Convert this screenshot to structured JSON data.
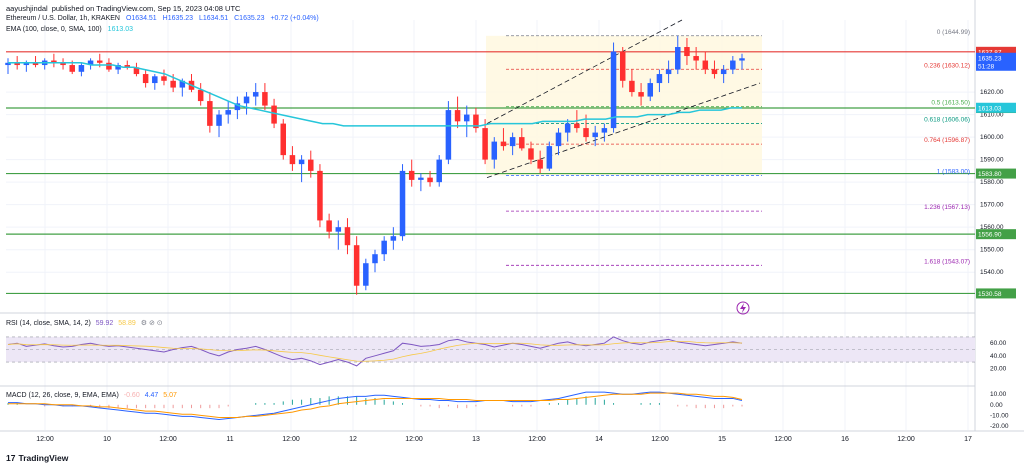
{
  "header": {
    "author": "aayushjindal",
    "published": "published on TradingView.com, Sep 15, 2023 04:08 UTC",
    "symbol_title": "Ethereum / U.S. Dollar, 1h, KRAKEN",
    "ohlc": {
      "o": "O1634.51",
      "h": "H1635.23",
      "l": "L1634.51",
      "c": "C1635.23",
      "chg": "+0.72 (+0.04%)"
    },
    "ema_label": "EMA (100, close, 0, SMA, 100)",
    "ema_value": "1613.03"
  },
  "rsi_header": {
    "label": "RSI (14, close, SMA, 14, 2)",
    "v1": "59.92",
    "v2": "58.89"
  },
  "macd_header": {
    "label": "MACD (12, 26, close, 9, EMA, EMA)",
    "v1": "-0.60",
    "v2": "4.47",
    "v3": "5.07"
  },
  "brand": {
    "logo": "17",
    "name": "TradingView"
  },
  "colors": {
    "up": "#2962ff",
    "down": "#ff3030",
    "ema": "#26c6da",
    "support": "#43a047",
    "resistance": "#e53935",
    "rsi": "#7e57c2",
    "rsi_band": "#ede7f6",
    "fib_zone": "#fff8e1",
    "macd": "#2962ff",
    "signal": "#ff9800"
  },
  "chart_data": {
    "type": "candlestick",
    "price_axis": {
      "min": 1525,
      "max": 1652,
      "ticks": [
        1540,
        1550,
        1560,
        1570,
        1580,
        1590,
        1600,
        1610,
        1620
      ]
    },
    "x_labels": [
      "12:00",
      "10",
      "12:00",
      "11",
      "12:00",
      "12",
      "12:00",
      "13",
      "12:00",
      "14",
      "12:00",
      "15",
      "12:00",
      "16",
      "12:00",
      "17"
    ],
    "candles_ohlc": [
      [
        1632,
        1635,
        1628,
        1633
      ],
      [
        1633,
        1636,
        1630,
        1632
      ],
      [
        1632,
        1634,
        1629,
        1633
      ],
      [
        1633,
        1636,
        1631,
        1632
      ],
      [
        1632,
        1635,
        1630,
        1634
      ],
      [
        1634,
        1637,
        1631,
        1633
      ],
      [
        1633,
        1635,
        1630,
        1632
      ],
      [
        1632,
        1634,
        1628,
        1629
      ],
      [
        1629,
        1633,
        1627,
        1632
      ],
      [
        1632,
        1635,
        1630,
        1634
      ],
      [
        1634,
        1637,
        1631,
        1633
      ],
      [
        1633,
        1635,
        1629,
        1630
      ],
      [
        1630,
        1633,
        1628,
        1632
      ],
      [
        1632,
        1634,
        1630,
        1631
      ],
      [
        1631,
        1633,
        1627,
        1628
      ],
      [
        1628,
        1630,
        1622,
        1624
      ],
      [
        1624,
        1628,
        1621,
        1627
      ],
      [
        1627,
        1630,
        1623,
        1625
      ],
      [
        1625,
        1628,
        1620,
        1622
      ],
      [
        1622,
        1626,
        1618,
        1625
      ],
      [
        1625,
        1628,
        1620,
        1621
      ],
      [
        1621,
        1624,
        1614,
        1616
      ],
      [
        1616,
        1620,
        1602,
        1605
      ],
      [
        1605,
        1612,
        1600,
        1610
      ],
      [
        1610,
        1616,
        1606,
        1612
      ],
      [
        1612,
        1618,
        1608,
        1615
      ],
      [
        1615,
        1620,
        1610,
        1618
      ],
      [
        1618,
        1624,
        1614,
        1620
      ],
      [
        1620,
        1624,
        1612,
        1614
      ],
      [
        1614,
        1617,
        1604,
        1606
      ],
      [
        1606,
        1608,
        1590,
        1592
      ],
      [
        1592,
        1596,
        1585,
        1588
      ],
      [
        1588,
        1592,
        1580,
        1590
      ],
      [
        1590,
        1594,
        1582,
        1585
      ],
      [
        1585,
        1588,
        1560,
        1563
      ],
      [
        1563,
        1566,
        1555,
        1558
      ],
      [
        1558,
        1563,
        1550,
        1560
      ],
      [
        1560,
        1564,
        1548,
        1552
      ],
      [
        1552,
        1556,
        1530,
        1534
      ],
      [
        1534,
        1546,
        1532,
        1544
      ],
      [
        1544,
        1550,
        1540,
        1548
      ],
      [
        1548,
        1556,
        1545,
        1554
      ],
      [
        1554,
        1560,
        1550,
        1556
      ],
      [
        1556,
        1588,
        1554,
        1585
      ],
      [
        1585,
        1590,
        1578,
        1581
      ],
      [
        1581,
        1584,
        1576,
        1582
      ],
      [
        1582,
        1585,
        1578,
        1580
      ],
      [
        1580,
        1592,
        1578,
        1590
      ],
      [
        1590,
        1616,
        1588,
        1612
      ],
      [
        1612,
        1618,
        1604,
        1607
      ],
      [
        1607,
        1614,
        1600,
        1610
      ],
      [
        1610,
        1613,
        1602,
        1604
      ],
      [
        1604,
        1608,
        1588,
        1590
      ],
      [
        1590,
        1600,
        1586,
        1598
      ],
      [
        1598,
        1604,
        1594,
        1596
      ],
      [
        1596,
        1602,
        1592,
        1600
      ],
      [
        1600,
        1604,
        1594,
        1595
      ],
      [
        1595,
        1598,
        1588,
        1590
      ],
      [
        1590,
        1594,
        1584,
        1586
      ],
      [
        1586,
        1598,
        1585,
        1596
      ],
      [
        1596,
        1604,
        1592,
        1602
      ],
      [
        1602,
        1608,
        1598,
        1606
      ],
      [
        1606,
        1612,
        1602,
        1604
      ],
      [
        1604,
        1610,
        1598,
        1600
      ],
      [
        1600,
        1605,
        1596,
        1602
      ],
      [
        1602,
        1606,
        1598,
        1604
      ],
      [
        1604,
        1642,
        1602,
        1638
      ],
      [
        1638,
        1640,
        1622,
        1625
      ],
      [
        1625,
        1630,
        1618,
        1620
      ],
      [
        1620,
        1624,
        1614,
        1618
      ],
      [
        1618,
        1626,
        1616,
        1624
      ],
      [
        1624,
        1630,
        1620,
        1628
      ],
      [
        1628,
        1634,
        1624,
        1630
      ],
      [
        1630,
        1645,
        1628,
        1640
      ],
      [
        1640,
        1644,
        1632,
        1636
      ],
      [
        1636,
        1640,
        1630,
        1634
      ],
      [
        1634,
        1638,
        1628,
        1630
      ],
      [
        1630,
        1634,
        1626,
        1628
      ],
      [
        1628,
        1632,
        1624,
        1630
      ],
      [
        1630,
        1636,
        1628,
        1634
      ],
      [
        1634,
        1637,
        1630,
        1635
      ]
    ],
    "ema": [
      1633,
      1633,
      1633,
      1633,
      1633,
      1633,
      1633,
      1633,
      1632,
      1632,
      1632,
      1631,
      1631,
      1630,
      1629,
      1628,
      1626,
      1624,
      1622,
      1620,
      1618,
      1616,
      1614,
      1613,
      1612,
      1611,
      1610,
      1609,
      1608,
      1607,
      1606,
      1606,
      1605,
      1605,
      1605,
      1605,
      1605,
      1605,
      1605,
      1605,
      1605,
      1605,
      1605,
      1605,
      1605,
      1605,
      1606,
      1606,
      1606,
      1606,
      1606,
      1607,
      1607,
      1607,
      1607,
      1608,
      1608,
      1608,
      1609,
      1609,
      1609,
      1610,
      1610,
      1610,
      1611,
      1611,
      1612,
      1612,
      1612,
      1613,
      1613
    ],
    "levels": {
      "resistance": [
        {
          "value": 1637.87,
          "label": "1637.87"
        }
      ],
      "support": [
        {
          "value": 1612.91,
          "label": "1612.91"
        },
        {
          "value": 1583.8,
          "label": "1583.80"
        },
        {
          "value": 1556.9,
          "label": "1556.90"
        },
        {
          "value": 1530.58,
          "label": "1530.58"
        }
      ]
    },
    "price_labels": {
      "last": "1635.23",
      "timer": "51:28"
    },
    "fibonacci": [
      {
        "ratio": "0",
        "price": "1644.99",
        "value": 1644.99,
        "color": "#787b86"
      },
      {
        "ratio": "0.236",
        "price": "1630.12",
        "value": 1630.12,
        "color": "#e53935"
      },
      {
        "ratio": "0.5",
        "price": "1613.50",
        "value": 1613.5,
        "color": "#4caf50"
      },
      {
        "ratio": "0.618",
        "price": "1606.06",
        "value": 1606.06,
        "color": "#089981"
      },
      {
        "ratio": "0.764",
        "price": "1596.87",
        "value": 1596.87,
        "color": "#e53935"
      },
      {
        "ratio": "1",
        "price": "1583.00",
        "value": 1583.0,
        "color": "#2962ff"
      },
      {
        "ratio": "1.236",
        "price": "1567.13",
        "value": 1567.13,
        "color": "#9c27b0"
      },
      {
        "ratio": "1.618",
        "price": "1543.07",
        "value": 1543.07,
        "color": "#9c27b0"
      }
    ],
    "channel": {
      "lower_start": [
        1582,
        50
      ],
      "lower_end": [
        1618,
        84
      ],
      "upper_start": [
        1606,
        50
      ],
      "upper_end": [
        1650,
        72
      ]
    },
    "rsi": {
      "axis_ticks": [
        20.0,
        40.0,
        60.0
      ],
      "band": [
        30,
        70
      ],
      "values": [
        58,
        60,
        55,
        57,
        59,
        56,
        54,
        55,
        58,
        60,
        57,
        55,
        56,
        54,
        52,
        50,
        48,
        46,
        50,
        53,
        55,
        50,
        44,
        40,
        46,
        50,
        52,
        55,
        50,
        44,
        38,
        34,
        36,
        32,
        26,
        30,
        34,
        30,
        24,
        36,
        40,
        44,
        48,
        60,
        58,
        55,
        56,
        58,
        64,
        66,
        62,
        60,
        58,
        54,
        57,
        60,
        58,
        55,
        52,
        56,
        60,
        62,
        58,
        56,
        58,
        60,
        70,
        64,
        60,
        58,
        62,
        64,
        66,
        62,
        60,
        58,
        56,
        58,
        60,
        62,
        60
      ]
    },
    "macd": {
      "axis_ticks": [
        10.0,
        0.0,
        -10.0,
        -20.0
      ],
      "macd": [
        2,
        2,
        1,
        1,
        0,
        0,
        -1,
        -1,
        -1,
        -2,
        -3,
        -4,
        -5,
        -6,
        -7,
        -8,
        -8,
        -9,
        -10,
        -11,
        -11,
        -12,
        -13,
        -14,
        -13,
        -12,
        -11,
        -10,
        -9,
        -8,
        -6,
        -4,
        -2,
        0,
        2,
        4,
        6,
        7,
        8,
        8,
        9,
        9,
        8,
        7,
        6,
        5,
        5,
        4,
        4,
        3,
        3,
        3,
        4,
        4,
        4,
        3,
        3,
        3,
        4,
        5,
        6,
        8,
        10,
        12,
        12,
        12,
        11,
        10,
        10,
        11,
        12,
        12,
        11,
        10,
        9,
        8,
        7,
        6,
        6,
        6,
        4
      ],
      "signal": [
        1,
        1,
        1,
        1,
        1,
        0,
        0,
        0,
        -1,
        -1,
        -2,
        -2,
        -3,
        -4,
        -5,
        -6,
        -6,
        -7,
        -8,
        -9,
        -9,
        -10,
        -11,
        -12,
        -12,
        -12,
        -11,
        -11,
        -10,
        -9,
        -8,
        -7,
        -5,
        -4,
        -2,
        -1,
        1,
        2,
        3,
        4,
        5,
        6,
        6,
        6,
        6,
        6,
        6,
        6,
        5,
        5,
        5,
        4,
        4,
        4,
        4,
        4,
        4,
        4,
        4,
        4,
        5,
        5,
        6,
        7,
        8,
        9,
        10,
        10,
        10,
        10,
        11,
        11,
        11,
        11,
        10,
        10,
        9,
        8,
        8,
        7,
        5
      ]
    },
    "date_positions": [
      45,
      107,
      168,
      230,
      291,
      353,
      414,
      476,
      537,
      599,
      660,
      722,
      783,
      845,
      906,
      968
    ]
  }
}
